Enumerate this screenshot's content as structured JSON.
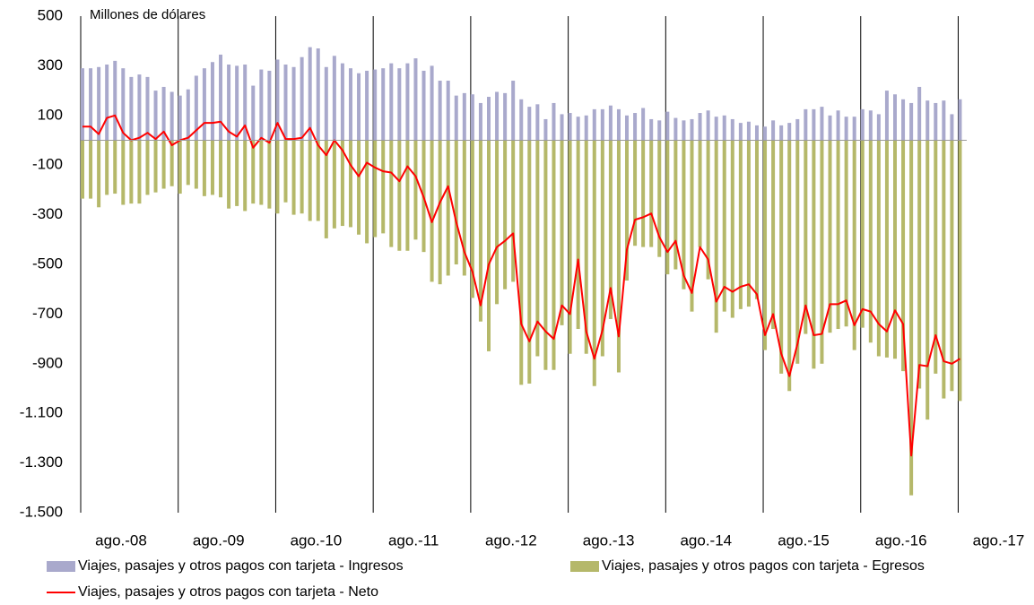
{
  "chart_data": {
    "type": "bar_line",
    "y_axis_label": "Millones de dólares",
    "categories": [
      "ago.-08",
      null,
      null,
      null,
      null,
      null,
      null,
      null,
      null,
      null,
      null,
      null,
      "ago.-09",
      null,
      null,
      null,
      null,
      null,
      null,
      null,
      null,
      null,
      null,
      null,
      "ago.-10",
      null,
      null,
      null,
      null,
      null,
      null,
      null,
      null,
      null,
      null,
      null,
      "ago.-11",
      null,
      null,
      null,
      null,
      null,
      null,
      null,
      null,
      null,
      null,
      null,
      "ago.-12",
      null,
      null,
      null,
      null,
      null,
      null,
      null,
      null,
      null,
      null,
      null,
      "ago.-13",
      null,
      null,
      null,
      null,
      null,
      null,
      null,
      null,
      null,
      null,
      null,
      "ago.-14",
      null,
      null,
      null,
      null,
      null,
      null,
      null,
      null,
      null,
      null,
      null,
      "ago.-15",
      null,
      null,
      null,
      null,
      null,
      null,
      null,
      null,
      null,
      null,
      null,
      "ago.-16",
      null,
      null,
      null,
      null,
      null,
      null,
      null,
      null,
      null,
      null,
      null,
      "ago.-17"
    ],
    "series": [
      {
        "name": "Viajes, pasajes y otros pagos con tarjeta - Ingresos",
        "kind": "bar",
        "color": "#a9a9cc",
        "values": [
          290,
          290,
          295,
          305,
          320,
          290,
          255,
          265,
          255,
          200,
          215,
          195,
          180,
          205,
          260,
          290,
          315,
          345,
          305,
          300,
          305,
          220,
          285,
          280,
          325,
          305,
          295,
          335,
          375,
          370,
          295,
          340,
          310,
          290,
          270,
          280,
          285,
          290,
          310,
          290,
          310,
          330,
          280,
          300,
          240,
          240,
          180,
          190,
          185,
          150,
          175,
          195,
          190,
          240,
          165,
          135,
          145,
          85,
          150,
          105,
          110,
          95,
          100,
          125,
          125,
          140,
          125,
          100,
          110,
          130,
          85,
          80,
          115,
          90,
          80,
          85,
          110,
          120,
          95,
          100,
          85,
          70,
          75,
          60,
          55,
          80,
          60,
          70,
          85,
          125,
          125,
          135,
          100,
          120,
          95,
          95,
          125,
          120,
          105,
          200,
          185,
          165,
          150,
          215,
          160,
          150,
          160,
          105,
          165
        ]
      },
      {
        "name": "Viajes, pasajes y otros pagos con tarjeta - Egresos",
        "kind": "bar",
        "color": "#b5b86a",
        "values": [
          -235,
          -235,
          -270,
          -220,
          -215,
          -260,
          -255,
          -255,
          -220,
          -210,
          -195,
          -185,
          -215,
          -180,
          -195,
          -225,
          -220,
          -230,
          -275,
          -265,
          -285,
          -255,
          -260,
          -275,
          -295,
          -250,
          -300,
          -295,
          -325,
          -325,
          -395,
          -355,
          -345,
          -350,
          -380,
          -415,
          -390,
          -375,
          -430,
          -445,
          -445,
          -400,
          -450,
          -570,
          -580,
          -545,
          -500,
          -545,
          -635,
          -730,
          -850,
          -660,
          -600,
          -570,
          -985,
          -980,
          -870,
          -925,
          -925,
          -745,
          -860,
          -760,
          -860,
          -990,
          -870,
          -720,
          -935,
          -565,
          -425,
          -430,
          -430,
          -470,
          -540,
          -520,
          -600,
          -690,
          -430,
          -560,
          -775,
          -690,
          -715,
          -680,
          -670,
          -640,
          -845,
          -760,
          -940,
          -1010,
          -900,
          -780,
          -920,
          -900,
          -775,
          -760,
          -750,
          -845,
          -755,
          -815,
          -870,
          -875,
          -880,
          -930,
          -1430,
          -1000,
          -1125,
          -940,
          -1040,
          -1010,
          -1050
        ]
      },
      {
        "name": "Viajes, pasajes y otros pagos con tarjeta - Neto",
        "kind": "line",
        "color": "#ff0000",
        "values": [
          55,
          55,
          25,
          90,
          100,
          30,
          0,
          10,
          30,
          5,
          35,
          -20,
          0,
          10,
          40,
          70,
          70,
          75,
          35,
          15,
          60,
          -30,
          10,
          -10,
          70,
          5,
          5,
          10,
          50,
          -20,
          -60,
          0,
          -40,
          -100,
          -145,
          -90,
          -110,
          -125,
          -130,
          -165,
          -105,
          -145,
          -230,
          -330,
          -250,
          -185,
          -330,
          -450,
          -530,
          -665,
          -500,
          -430,
          -405,
          -375,
          -740,
          -810,
          -730,
          -770,
          -800,
          -665,
          -700,
          -480,
          -770,
          -880,
          -765,
          -595,
          -790,
          -440,
          -320,
          -310,
          -295,
          -390,
          -450,
          -405,
          -545,
          -615,
          -430,
          -480,
          -650,
          -590,
          -610,
          -590,
          -580,
          -620,
          -785,
          -700,
          -860,
          -950,
          -820,
          -665,
          -785,
          -780,
          -660,
          -660,
          -645,
          -745,
          -680,
          -690,
          -740,
          -770,
          -685,
          -740,
          -1270,
          -905,
          -910,
          -785,
          -890,
          -900,
          -880
        ]
      }
    ],
    "ylim": [
      -1500,
      500
    ],
    "yticks": [
      500,
      300,
      100,
      -100,
      -300,
      -500,
      -700,
      -900,
      {
        "value": -1100,
        "label": "-1.100"
      },
      {
        "value": -1300,
        "label": "-1.300"
      },
      {
        "value": -1500,
        "label": "-1.500"
      }
    ],
    "grid": false
  }
}
